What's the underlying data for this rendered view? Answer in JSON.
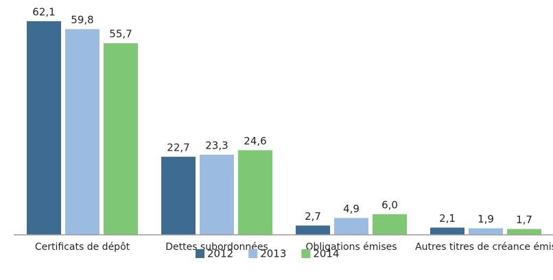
{
  "chart_data": {
    "type": "bar",
    "categories": [
      "Certificats de dépôt",
      "Dettes subordonnées",
      "Obligations émises",
      "Autres titres de créance émis"
    ],
    "series": [
      {
        "name": "2012",
        "color": "#3d6b91",
        "values": [
          62.1,
          22.7,
          2.7,
          2.1
        ],
        "value_labels": [
          "62,1",
          "22,7",
          "2,7",
          "2,1"
        ]
      },
      {
        "name": "2013",
        "color": "#9bbbe0",
        "values": [
          59.8,
          23.3,
          4.9,
          1.9
        ],
        "value_labels": [
          "59,8",
          "23,3",
          "4,9",
          "1,9"
        ]
      },
      {
        "name": "2014",
        "color": "#7ec774",
        "values": [
          55.7,
          24.6,
          6.0,
          1.7
        ],
        "value_labels": [
          "55,7",
          "24,6",
          "6,0",
          "1,7"
        ]
      }
    ],
    "legend": "bottom"
  }
}
